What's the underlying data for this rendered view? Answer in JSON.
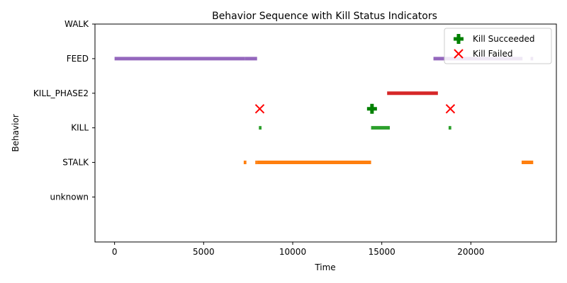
{
  "chart_data": {
    "type": "timeline",
    "title": "Behavior Sequence with Kill Status Indicators",
    "xlabel": "Time",
    "ylabel": "Behavior",
    "xlim": [
      -1100,
      24800
    ],
    "xticks": [
      0,
      5000,
      10000,
      15000,
      20000
    ],
    "ylim": [
      -1.3,
      5.0
    ],
    "categories": [
      "unknown",
      "STALK",
      "KILL",
      "KILL_PHASE2",
      "FEED",
      "WALK"
    ],
    "grid": false,
    "legend_position": "top-right",
    "colors": {
      "STALK": "#ff7f0e",
      "KILL": "#2ca02c",
      "KILL_PHASE2": "#d62728",
      "FEED": "#9467bd",
      "kill_succeeded": "#008000",
      "kill_failed": "#ff0000"
    },
    "segments": [
      {
        "behavior": "FEED",
        "start": 0,
        "end": 7300
      },
      {
        "behavior": "FEED",
        "start": 7300,
        "end": 8000
      },
      {
        "behavior": "STALK",
        "start": 7250,
        "end": 7400
      },
      {
        "behavior": "STALK",
        "start": 7900,
        "end": 8000
      },
      {
        "behavior": "STALK",
        "start": 8000,
        "end": 14400
      },
      {
        "behavior": "KILL",
        "start": 8100,
        "end": 8250
      },
      {
        "behavior": "KILL",
        "start": 14400,
        "end": 15450
      },
      {
        "behavior": "KILL_PHASE2",
        "start": 15300,
        "end": 18150
      },
      {
        "behavior": "FEED",
        "start": 17900,
        "end": 18550
      },
      {
        "behavior": "FEED",
        "start": 18550,
        "end": 22900
      },
      {
        "behavior": "KILL",
        "start": 18750,
        "end": 18900
      },
      {
        "behavior": "STALK",
        "start": 22850,
        "end": 23500
      },
      {
        "behavior": "FEED",
        "start": 23350,
        "end": 23500
      }
    ],
    "kill_events": [
      {
        "status": "failed",
        "time": 8150,
        "y": 2.55
      },
      {
        "status": "succeeded",
        "time": 14450,
        "y": 2.55
      },
      {
        "status": "failed",
        "time": 18850,
        "y": 2.55
      }
    ],
    "legend": [
      {
        "label": "Kill Succeeded",
        "marker": "plus",
        "color": "#008000"
      },
      {
        "label": "Kill Failed",
        "marker": "x",
        "color": "#ff0000"
      }
    ]
  }
}
